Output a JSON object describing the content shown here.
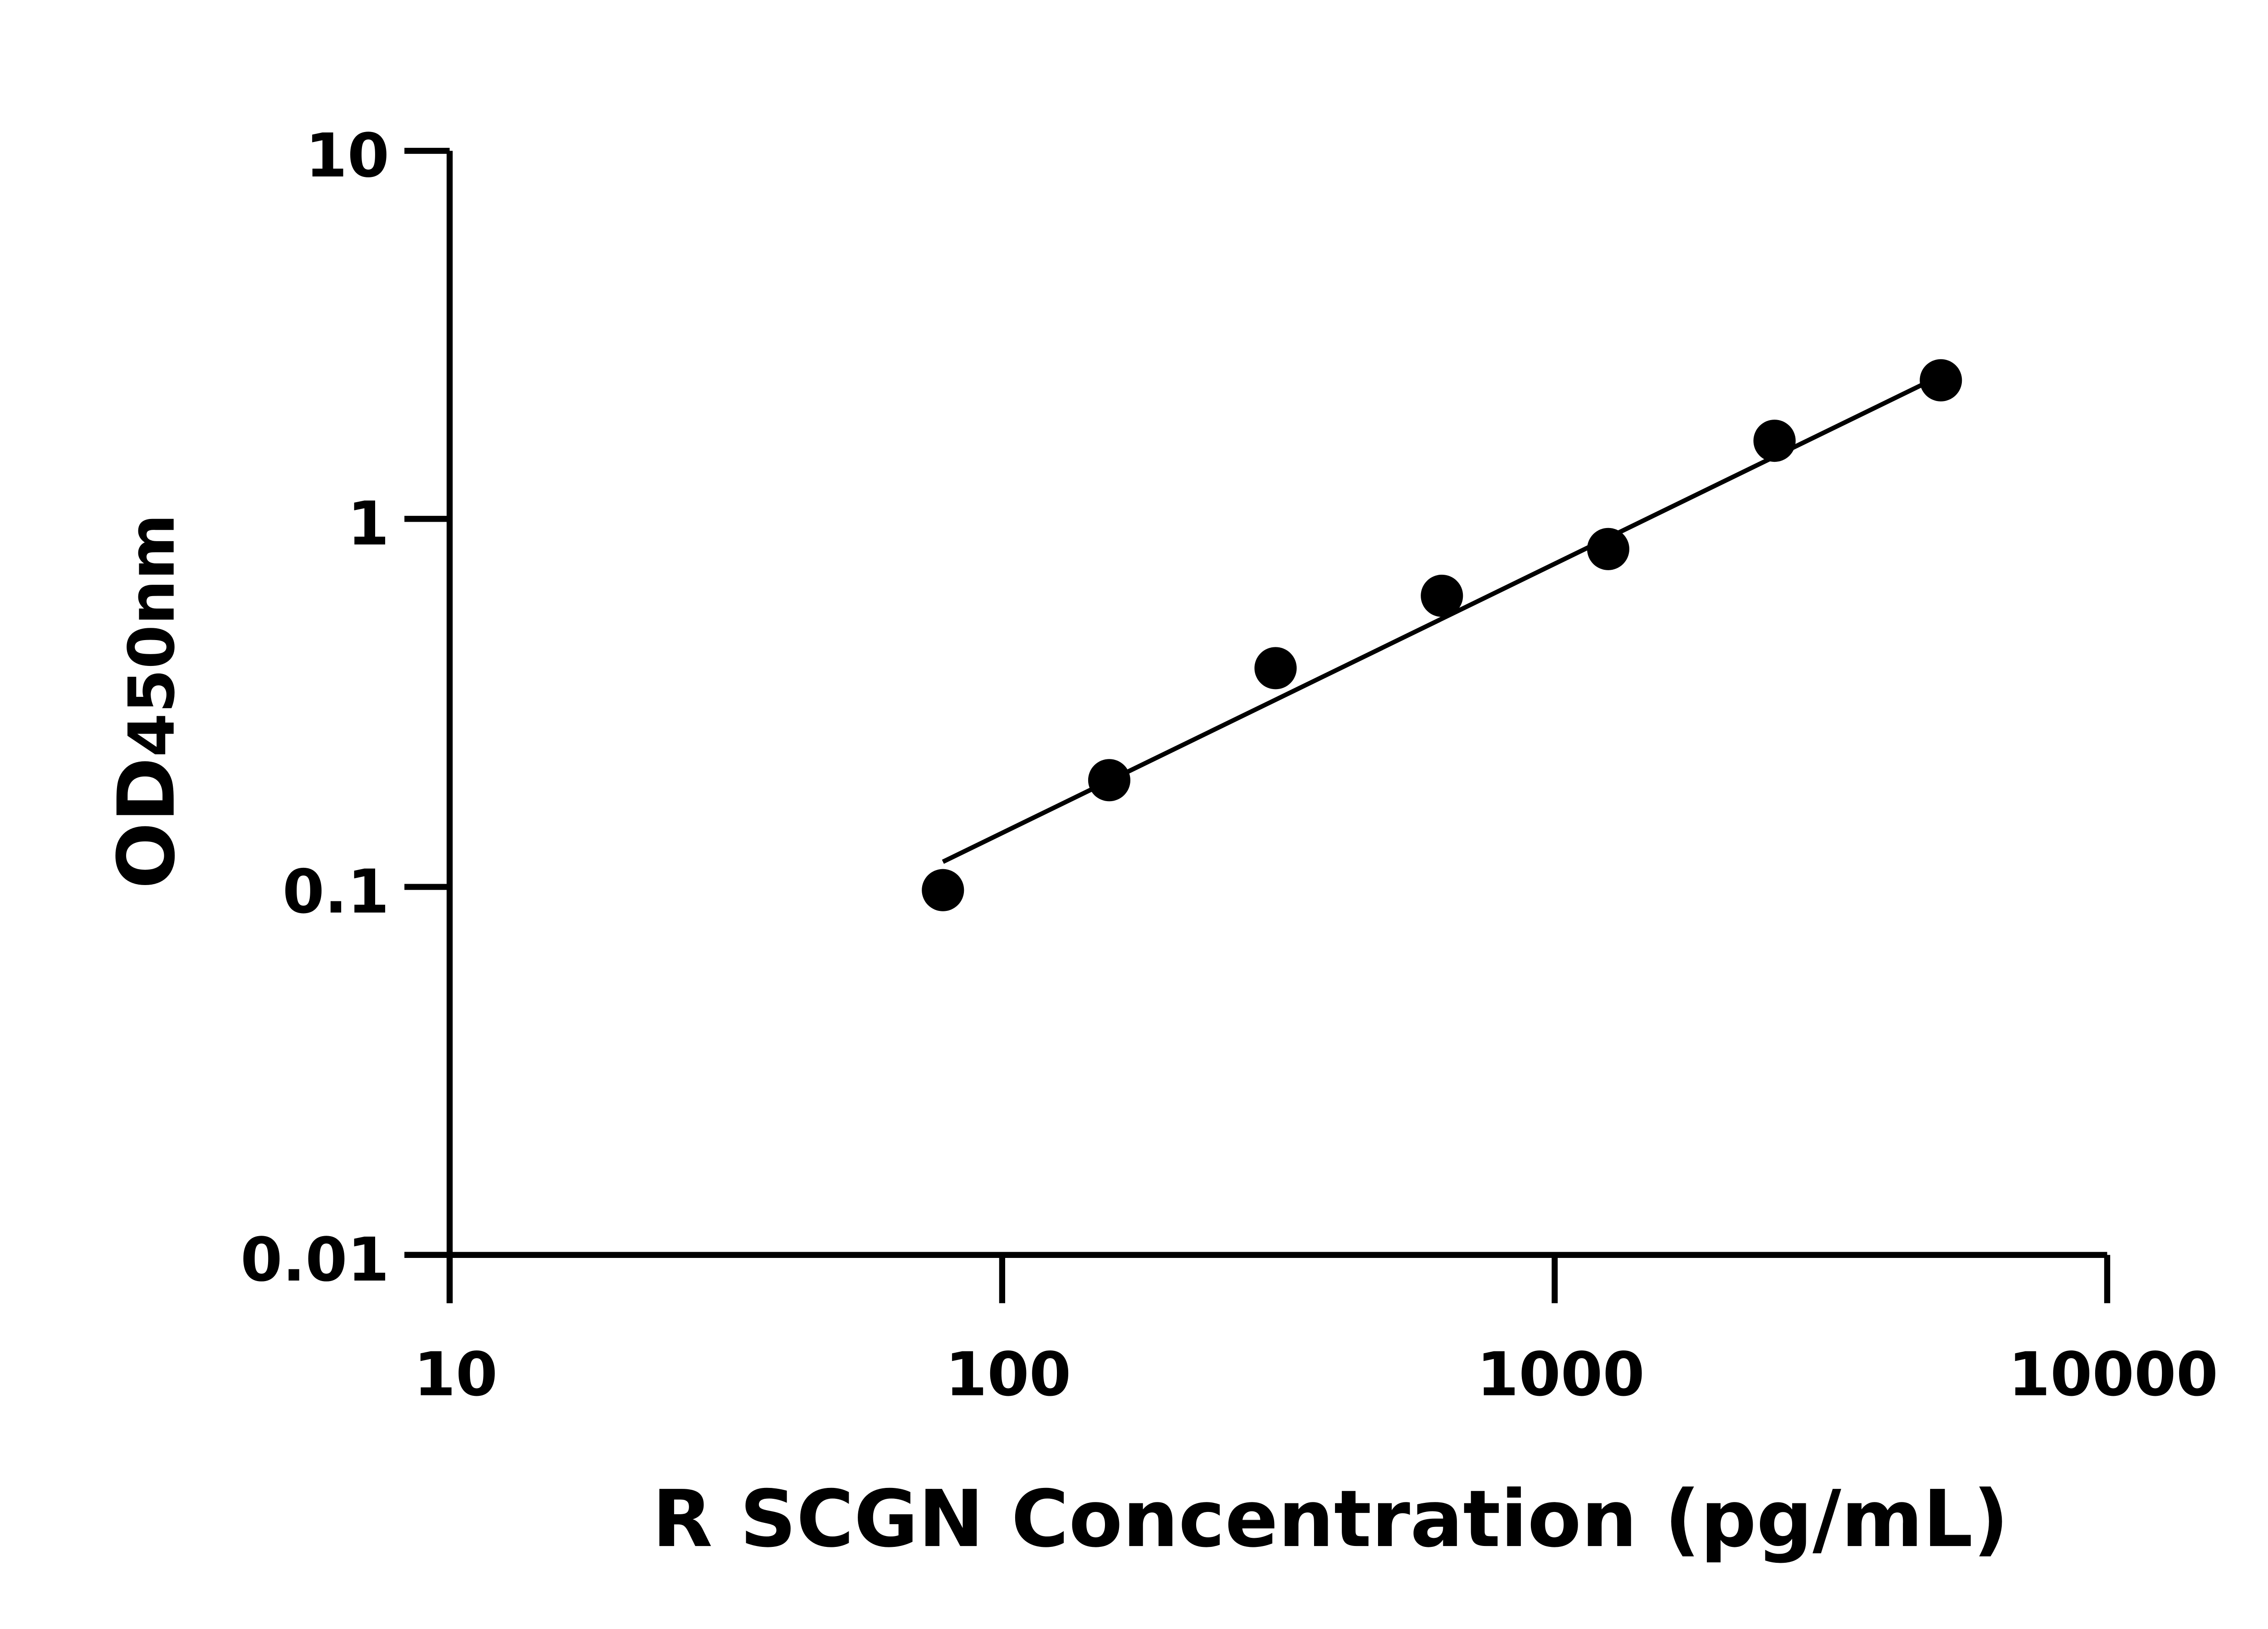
{
  "chart_data": {
    "type": "scatter",
    "title": "",
    "xlabel": "R SCGN Concentration (pg/mL)",
    "ylabel": "OD450nm",
    "ylabel_main": "OD",
    "ylabel_sub": "450nm",
    "x_scale": "log",
    "y_scale": "log",
    "xlim": [
      10,
      10000
    ],
    "ylim": [
      0.01,
      10
    ],
    "x_ticks": [
      "10",
      "100",
      "1000",
      "10000"
    ],
    "y_ticks": [
      "0.01",
      "0.1",
      "1",
      "10"
    ],
    "grid": false,
    "points": {
      "x": [
        78.125,
        156.25,
        312.5,
        625,
        1250,
        2500,
        5000
      ],
      "y": [
        0.098,
        0.195,
        0.393,
        0.618,
        0.828,
        1.63,
        2.38
      ]
    },
    "fit_line": {
      "x": [
        78.125,
        5000
      ],
      "y": [
        0.117,
        2.45
      ]
    },
    "colors": {
      "marker": "#000000",
      "line": "#000000"
    }
  }
}
